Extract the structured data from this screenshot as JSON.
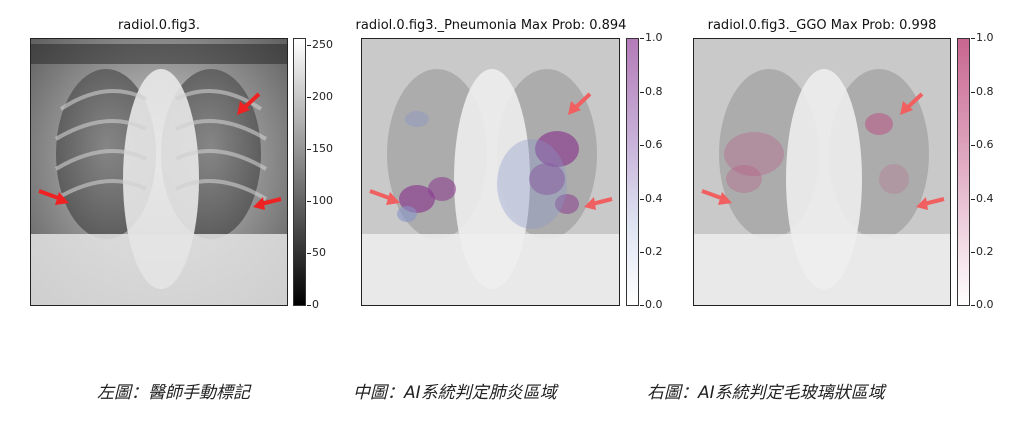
{
  "panels": [
    {
      "title": "radiol.0.fig3.",
      "colormap": "gray",
      "ticks": [
        "250",
        "200",
        "150",
        "100",
        "50",
        "0"
      ]
    },
    {
      "title": "radiol.0.fig3._Pneumonia Max Prob: 0.894",
      "colormap": "blue-purple",
      "max_prob": 0.894,
      "ticks": [
        "1.0",
        "0.8",
        "0.6",
        "0.4",
        "0.2",
        "0.0"
      ],
      "accent": "#9b4f9a"
    },
    {
      "title": "radiol.0.fig3._GGO Max Prob: 0.998",
      "colormap": "pink",
      "max_prob": 0.998,
      "ticks": [
        "1.0",
        "0.8",
        "0.6",
        "0.4",
        "0.2",
        "0.0"
      ],
      "accent": "#c8557f"
    }
  ],
  "captions": [
    "左圖：醫師手動標記",
    "中圖：AI系統判定肺炎區域",
    "右圖：AI系統判定毛玻璃狀區域"
  ],
  "arrow_color": "#ee2222"
}
